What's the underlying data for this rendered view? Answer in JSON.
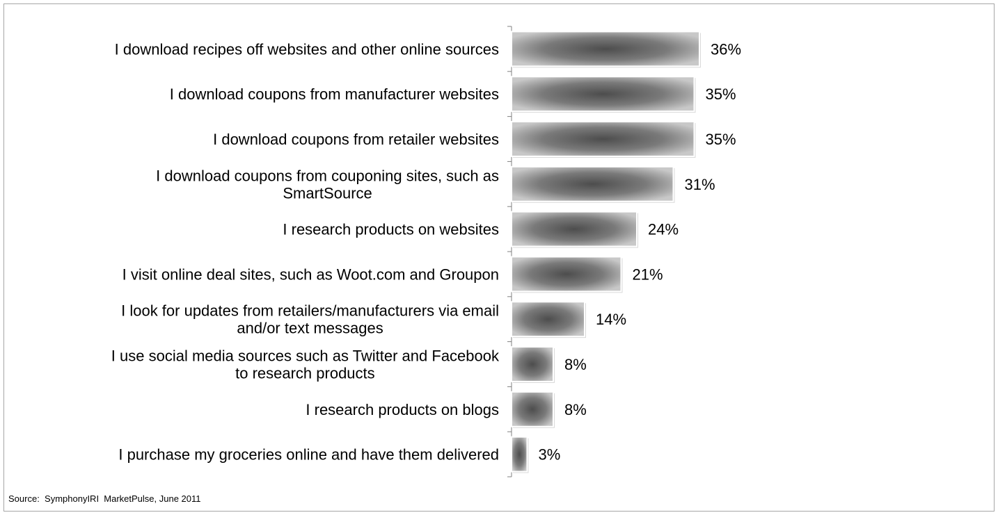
{
  "chart_data": {
    "type": "bar",
    "orientation": "horizontal",
    "categories": [
      [
        "I download recipes off websites and other online sources"
      ],
      [
        "I download coupons from manufacturer websites"
      ],
      [
        "I download coupons from retailer websites"
      ],
      [
        "I download coupons from couponing sites, such as",
        "SmartSource"
      ],
      [
        "I research products on websites"
      ],
      [
        "I visit online deal sites, such as Woot.com and Groupon"
      ],
      [
        "I look for updates from retailers/manufacturers via email",
        "and/or text messages"
      ],
      [
        "I use social media sources such as Twitter and Facebook",
        "to research products"
      ],
      [
        "I research products on blogs"
      ],
      [
        "I purchase my groceries online and have them delivered"
      ]
    ],
    "values": [
      36,
      35,
      35,
      31,
      24,
      21,
      14,
      8,
      8,
      3
    ],
    "value_labels": [
      "36%",
      "35%",
      "35%",
      "31%",
      "24%",
      "21%",
      "14%",
      "8%",
      "8%",
      "3%"
    ],
    "xlim": [
      0,
      100
    ],
    "grid": false,
    "bar_color": "#8c8c8c"
  },
  "source": "Source:  SymphonyIRI  MarketPulse, June 2011"
}
